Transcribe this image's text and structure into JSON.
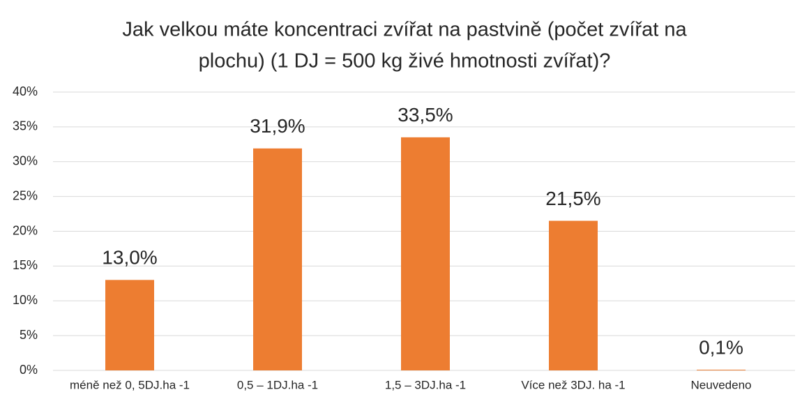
{
  "chart_data": {
    "type": "bar",
    "title": [
      "Jak velkou máte koncentraci zvířat na pastvině (počet zvířat na",
      "plochu) (1 DJ = 500 kg živé hmotnosti zvířat)?"
    ],
    "categories": [
      "méně než 0, 5DJ.ha -1",
      "0,5 – 1DJ.ha -1",
      "1,5 – 3DJ.ha -1",
      "Více než 3DJ. ha -1",
      "Neuvedeno"
    ],
    "values": [
      13.0,
      31.9,
      33.5,
      21.5,
      0.1
    ],
    "value_labels": [
      "13,0%",
      "31,9%",
      "33,5%",
      "21,5%",
      "0,1%"
    ],
    "color": "#ed7d31",
    "ylim": [
      0,
      40
    ],
    "yticks": [
      {
        "value": 0,
        "label": "0%"
      },
      {
        "value": 5,
        "label": "5%"
      },
      {
        "value": 10,
        "label": "10%"
      },
      {
        "value": 15,
        "label": "15%"
      },
      {
        "value": 20,
        "label": "20%"
      },
      {
        "value": 25,
        "label": "25%"
      },
      {
        "value": 30,
        "label": "30%"
      },
      {
        "value": 35,
        "label": "35%"
      },
      {
        "value": 40,
        "label": "40%"
      }
    ],
    "grid": true
  }
}
